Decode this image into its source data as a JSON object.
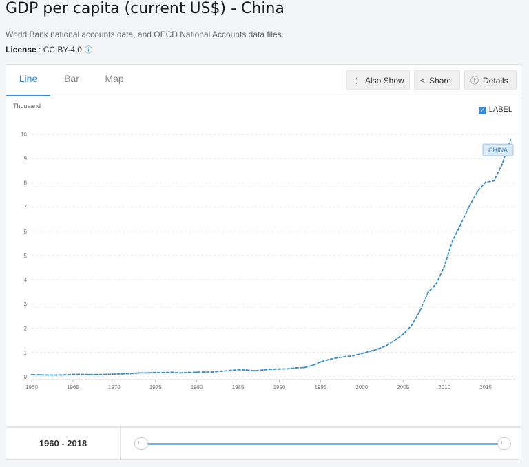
{
  "header": {
    "title": "GDP per capita (current US$) - China",
    "source": "World Bank national accounts data, and OECD National Accounts data files.",
    "license_label": "License",
    "license_value": " : CC BY-4.0",
    "license_icon": "info-icon"
  },
  "tabs": [
    {
      "label": "Line",
      "active": true
    },
    {
      "label": "Bar",
      "active": false
    },
    {
      "label": "Map",
      "active": false
    }
  ],
  "toolbar": {
    "also_show": "Also Show",
    "share": "Share",
    "details": "Details"
  },
  "label_toggle": {
    "label": "LABEL",
    "checked": true
  },
  "colors": {
    "accent": "#2b8be0",
    "line": "#3a8fc8",
    "slider": "#6ab7ee"
  },
  "range": {
    "label": "1960 - 2018",
    "start": 1960,
    "end": 2018
  },
  "chart_data": {
    "type": "line",
    "ylabel": "Thousand",
    "ylim": [
      0,
      10
    ],
    "yticks": [
      0,
      1,
      2,
      3,
      4,
      5,
      6,
      7,
      8,
      9,
      10
    ],
    "xlim": [
      1960,
      2018
    ],
    "xticks": [
      1960,
      1965,
      1970,
      1975,
      1980,
      1985,
      1990,
      1995,
      2000,
      2005,
      2010,
      2015
    ],
    "grid": true,
    "series": [
      {
        "name": "CHINA",
        "x": [
          1960,
          1961,
          1962,
          1963,
          1964,
          1965,
          1966,
          1967,
          1968,
          1969,
          1970,
          1971,
          1972,
          1973,
          1974,
          1975,
          1976,
          1977,
          1978,
          1979,
          1980,
          1981,
          1982,
          1983,
          1984,
          1985,
          1986,
          1987,
          1988,
          1989,
          1990,
          1991,
          1992,
          1993,
          1994,
          1995,
          1996,
          1997,
          1998,
          1999,
          2000,
          2001,
          2002,
          2003,
          2004,
          2005,
          2006,
          2007,
          2008,
          2009,
          2010,
          2011,
          2012,
          2013,
          2014,
          2015,
          2016,
          2017,
          2018
        ],
        "values": [
          0.09,
          0.08,
          0.07,
          0.07,
          0.08,
          0.1,
          0.1,
          0.09,
          0.09,
          0.1,
          0.11,
          0.12,
          0.13,
          0.16,
          0.16,
          0.18,
          0.17,
          0.19,
          0.16,
          0.18,
          0.19,
          0.2,
          0.2,
          0.23,
          0.26,
          0.29,
          0.28,
          0.25,
          0.28,
          0.31,
          0.32,
          0.33,
          0.37,
          0.38,
          0.47,
          0.61,
          0.71,
          0.78,
          0.83,
          0.87,
          0.96,
          1.05,
          1.15,
          1.29,
          1.51,
          1.75,
          2.1,
          2.69,
          3.47,
          3.83,
          4.55,
          5.62,
          6.3,
          7.02,
          7.64,
          8.03,
          8.08,
          8.76,
          9.77
        ]
      }
    ]
  }
}
